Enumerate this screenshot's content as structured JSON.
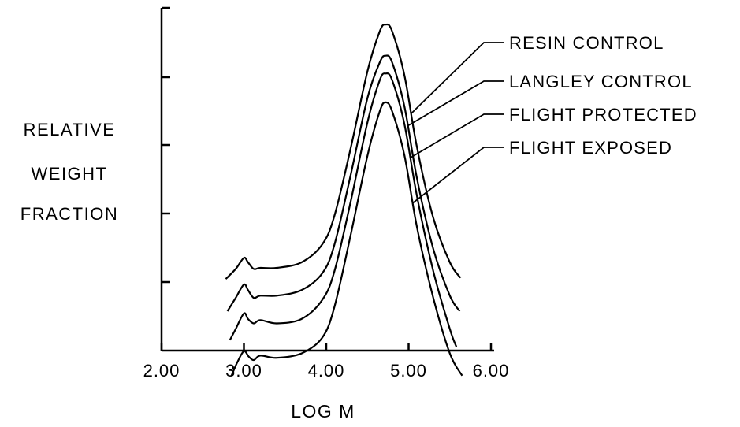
{
  "chart_data": {
    "type": "line",
    "title": "",
    "xlabel": "LOG M",
    "ylabel_lines": [
      "RELATIVE",
      "WEIGHT",
      "FRACTION"
    ],
    "xlim": [
      2.0,
      6.0
    ],
    "x_ticks": [
      "2.00",
      "3.00",
      "4.00",
      "5.00",
      "6.00"
    ],
    "y_ticks_count": 5,
    "y_tick_labels": [],
    "grid": false,
    "legend_placement": "top-right, callout labels",
    "series": [
      {
        "name": "RESIN CONTROL",
        "x": [
          2.78,
          2.9,
          3.0,
          3.05,
          3.12,
          3.2,
          3.4,
          3.7,
          3.95,
          4.1,
          4.3,
          4.5,
          4.65,
          4.72,
          4.8,
          4.95,
          5.1,
          5.3,
          5.5,
          5.63
        ],
        "y": [
          1.45,
          1.9,
          2.4,
          2.2,
          1.9,
          1.95,
          1.95,
          2.2,
          3.0,
          4.3,
          7.4,
          10.8,
          12.6,
          12.9,
          12.6,
          10.6,
          7.4,
          4.2,
          2.2,
          1.5
        ]
      },
      {
        "name": "LANGLEY CONTROL",
        "x": [
          2.8,
          2.9,
          3.0,
          3.05,
          3.12,
          3.2,
          3.4,
          3.7,
          3.95,
          4.1,
          4.3,
          4.5,
          4.65,
          4.72,
          4.8,
          4.95,
          5.1,
          5.3,
          5.5,
          5.62
        ],
        "y": [
          0.0,
          0.6,
          1.2,
          0.95,
          0.6,
          0.7,
          0.7,
          0.95,
          1.7,
          3.0,
          6.2,
          9.6,
          11.2,
          11.5,
          11.2,
          9.2,
          6.0,
          2.8,
          0.7,
          0.0
        ]
      },
      {
        "name": "FLIGHT PROTECTED",
        "x": [
          2.83,
          2.9,
          3.0,
          3.05,
          3.12,
          3.2,
          3.4,
          3.7,
          3.95,
          4.1,
          4.3,
          4.5,
          4.65,
          4.72,
          4.8,
          4.95,
          5.1,
          5.3,
          5.5,
          5.58
        ],
        "y": [
          -1.3,
          -0.8,
          -0.1,
          -0.35,
          -0.55,
          -0.4,
          -0.55,
          -0.35,
          0.5,
          1.8,
          5.0,
          8.5,
          10.4,
          10.7,
          10.4,
          8.4,
          5.2,
          1.8,
          -0.8,
          -1.6
        ]
      },
      {
        "name": "FLIGHT EXPOSED",
        "x": [
          2.85,
          2.92,
          3.0,
          3.06,
          3.12,
          3.2,
          3.4,
          3.7,
          3.95,
          4.1,
          4.3,
          4.5,
          4.65,
          4.72,
          4.8,
          4.95,
          5.1,
          5.3,
          5.5,
          5.65
        ],
        "y": [
          -2.9,
          -2.3,
          -1.8,
          -2.05,
          -2.2,
          -2.0,
          -2.1,
          -1.9,
          -1.2,
          0.2,
          3.5,
          7.0,
          9.0,
          9.4,
          9.0,
          7.0,
          3.8,
          0.6,
          -1.9,
          -2.9
        ]
      }
    ]
  }
}
